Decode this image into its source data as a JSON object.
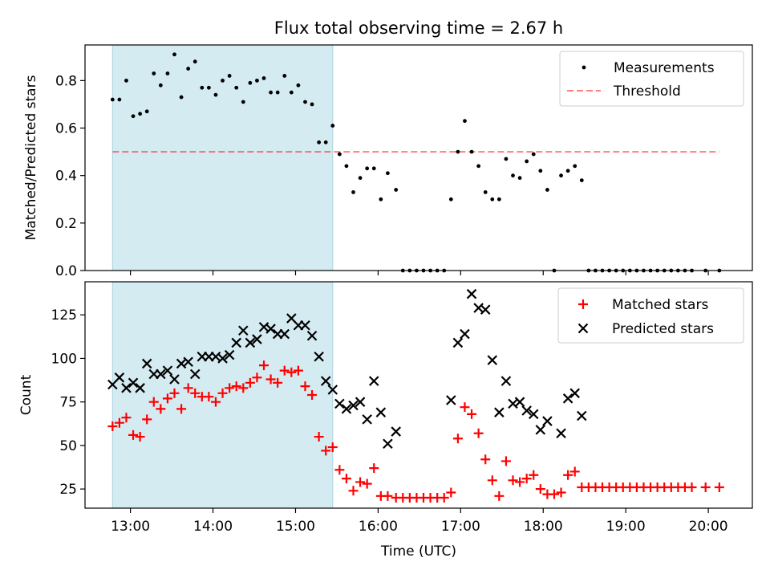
{
  "title": "Flux total observing time = 2.67 h",
  "colors": {
    "shade": "#add8e6",
    "threshold": "#ff0000",
    "measurements": "#000000",
    "matched": "#ff0000",
    "predicted": "#000000"
  },
  "chart_data": [
    {
      "type": "scatter",
      "panel": "top",
      "xlabel": "",
      "ylabel": "Matched/Predicted stars",
      "ylim": [
        0,
        0.95
      ],
      "yticks": [
        0.0,
        0.2,
        0.4,
        0.6,
        0.8
      ],
      "ytick_labels": [
        "0.0",
        "0.2",
        "0.4",
        "0.6",
        "0.8"
      ],
      "legend": {
        "position": "top-right",
        "entries": [
          "Measurements",
          "Threshold"
        ]
      },
      "shaded_interval": {
        "x0": "12:47",
        "x1": "15:27"
      },
      "threshold": {
        "name": "Threshold",
        "value": 0.5,
        "x0": "12:47",
        "x1": "20:08",
        "style": "dashed"
      },
      "series": [
        {
          "name": "Measurements",
          "marker": "dot",
          "points": [
            [
              "12:47",
              0.72
            ],
            [
              "12:52",
              0.72
            ],
            [
              "12:57",
              0.8
            ],
            [
              "13:02",
              0.65
            ],
            [
              "13:07",
              0.66
            ],
            [
              "13:12",
              0.67
            ],
            [
              "13:17",
              0.83
            ],
            [
              "13:22",
              0.78
            ],
            [
              "13:27",
              0.83
            ],
            [
              "13:32",
              0.91
            ],
            [
              "13:37",
              0.73
            ],
            [
              "13:42",
              0.85
            ],
            [
              "13:47",
              0.88
            ],
            [
              "13:52",
              0.77
            ],
            [
              "13:57",
              0.77
            ],
            [
              "14:02",
              0.74
            ],
            [
              "14:07",
              0.8
            ],
            [
              "14:12",
              0.82
            ],
            [
              "14:17",
              0.77
            ],
            [
              "14:22",
              0.71
            ],
            [
              "14:27",
              0.79
            ],
            [
              "14:32",
              0.8
            ],
            [
              "14:37",
              0.81
            ],
            [
              "14:42",
              0.75
            ],
            [
              "14:47",
              0.75
            ],
            [
              "14:52",
              0.82
            ],
            [
              "14:57",
              0.75
            ],
            [
              "15:02",
              0.78
            ],
            [
              "15:07",
              0.71
            ],
            [
              "15:12",
              0.7
            ],
            [
              "15:17",
              0.54
            ],
            [
              "15:22",
              0.54
            ],
            [
              "15:27",
              0.61
            ],
            [
              "15:32",
              0.49
            ],
            [
              "15:37",
              0.44
            ],
            [
              "15:42",
              0.33
            ],
            [
              "15:47",
              0.39
            ],
            [
              "15:52",
              0.43
            ],
            [
              "15:57",
              0.43
            ],
            [
              "16:02",
              0.3
            ],
            [
              "16:07",
              0.41
            ],
            [
              "16:13",
              0.34
            ],
            [
              "16:18",
              0.0
            ],
            [
              "16:23",
              0.0
            ],
            [
              "16:28",
              0.0
            ],
            [
              "16:33",
              0.0
            ],
            [
              "16:38",
              0.0
            ],
            [
              "16:43",
              0.0
            ],
            [
              "16:48",
              0.0
            ],
            [
              "16:53",
              0.3
            ],
            [
              "16:58",
              0.5
            ],
            [
              "17:03",
              0.63
            ],
            [
              "17:08",
              0.5
            ],
            [
              "17:13",
              0.44
            ],
            [
              "17:18",
              0.33
            ],
            [
              "17:23",
              0.3
            ],
            [
              "17:28",
              0.3
            ],
            [
              "17:33",
              0.47
            ],
            [
              "17:38",
              0.4
            ],
            [
              "17:43",
              0.39
            ],
            [
              "17:48",
              0.46
            ],
            [
              "17:53",
              0.49
            ],
            [
              "17:58",
              0.42
            ],
            [
              "18:03",
              0.34
            ],
            [
              "18:08",
              0.0
            ],
            [
              "18:13",
              0.4
            ],
            [
              "18:18",
              0.42
            ],
            [
              "18:23",
              0.44
            ],
            [
              "18:28",
              0.38
            ],
            [
              "18:33",
              0.0
            ],
            [
              "18:38",
              0.0
            ],
            [
              "18:43",
              0.0
            ],
            [
              "18:48",
              0.0
            ],
            [
              "18:53",
              0.0
            ],
            [
              "18:58",
              0.0
            ],
            [
              "19:03",
              0.0
            ],
            [
              "19:08",
              0.0
            ],
            [
              "19:13",
              0.0
            ],
            [
              "19:18",
              0.0
            ],
            [
              "19:23",
              0.0
            ],
            [
              "19:28",
              0.0
            ],
            [
              "19:33",
              0.0
            ],
            [
              "19:38",
              0.0
            ],
            [
              "19:43",
              0.0
            ],
            [
              "19:48",
              0.0
            ],
            [
              "19:58",
              0.0
            ],
            [
              "20:08",
              0.0
            ]
          ]
        }
      ]
    },
    {
      "type": "scatter",
      "panel": "bottom",
      "xlabel": "Time (UTC)",
      "ylabel": "Count",
      "xlim": [
        "12:27",
        "20:32"
      ],
      "ylim": [
        14,
        144
      ],
      "yticks": [
        25,
        50,
        75,
        100,
        125
      ],
      "ytick_labels": [
        "25",
        "50",
        "75",
        "100",
        "125"
      ],
      "xticks": [
        "13:00",
        "14:00",
        "15:00",
        "16:00",
        "17:00",
        "18:00",
        "19:00",
        "20:00"
      ],
      "legend": {
        "position": "top-right",
        "entries": [
          "Matched stars",
          "Predicted stars"
        ]
      },
      "shaded_interval": {
        "x0": "12:47",
        "x1": "15:27"
      },
      "series": [
        {
          "name": "Matched stars",
          "marker": "plus",
          "points": [
            [
              "12:47",
              61
            ],
            [
              "12:52",
              63
            ],
            [
              "12:57",
              66
            ],
            [
              "13:02",
              56
            ],
            [
              "13:07",
              55
            ],
            [
              "13:12",
              65
            ],
            [
              "13:17",
              75
            ],
            [
              "13:22",
              71
            ],
            [
              "13:27",
              77
            ],
            [
              "13:32",
              80
            ],
            [
              "13:37",
              71
            ],
            [
              "13:42",
              83
            ],
            [
              "13:47",
              80
            ],
            [
              "13:52",
              78
            ],
            [
              "13:57",
              78
            ],
            [
              "14:02",
              75
            ],
            [
              "14:07",
              80
            ],
            [
              "14:12",
              83
            ],
            [
              "14:17",
              84
            ],
            [
              "14:22",
              83
            ],
            [
              "14:27",
              86
            ],
            [
              "14:32",
              89
            ],
            [
              "14:37",
              96
            ],
            [
              "14:42",
              88
            ],
            [
              "14:47",
              86
            ],
            [
              "14:52",
              93
            ],
            [
              "14:57",
              92
            ],
            [
              "15:02",
              93
            ],
            [
              "15:07",
              84
            ],
            [
              "15:12",
              79
            ],
            [
              "15:17",
              55
            ],
            [
              "15:22",
              47
            ],
            [
              "15:27",
              49
            ],
            [
              "15:32",
              36
            ],
            [
              "15:37",
              31
            ],
            [
              "15:42",
              24
            ],
            [
              "15:47",
              29
            ],
            [
              "15:52",
              28
            ],
            [
              "15:57",
              37
            ],
            [
              "16:02",
              21
            ],
            [
              "16:07",
              21
            ],
            [
              "16:13",
              20
            ],
            [
              "16:18",
              20
            ],
            [
              "16:23",
              20
            ],
            [
              "16:28",
              20
            ],
            [
              "16:33",
              20
            ],
            [
              "16:38",
              20
            ],
            [
              "16:43",
              20
            ],
            [
              "16:48",
              20
            ],
            [
              "16:53",
              23
            ],
            [
              "16:58",
              54
            ],
            [
              "17:03",
              72
            ],
            [
              "17:08",
              68
            ],
            [
              "17:13",
              57
            ],
            [
              "17:18",
              42
            ],
            [
              "17:23",
              30
            ],
            [
              "17:28",
              21
            ],
            [
              "17:33",
              41
            ],
            [
              "17:38",
              30
            ],
            [
              "17:43",
              29
            ],
            [
              "17:48",
              31
            ],
            [
              "17:53",
              33
            ],
            [
              "17:58",
              25
            ],
            [
              "18:03",
              22
            ],
            [
              "18:08",
              22
            ],
            [
              "18:13",
              23
            ],
            [
              "18:18",
              33
            ],
            [
              "18:23",
              35
            ],
            [
              "18:28",
              26
            ],
            [
              "18:33",
              26
            ],
            [
              "18:38",
              26
            ],
            [
              "18:43",
              26
            ],
            [
              "18:48",
              26
            ],
            [
              "18:53",
              26
            ],
            [
              "18:58",
              26
            ],
            [
              "19:03",
              26
            ],
            [
              "19:08",
              26
            ],
            [
              "19:13",
              26
            ],
            [
              "19:18",
              26
            ],
            [
              "19:23",
              26
            ],
            [
              "19:28",
              26
            ],
            [
              "19:33",
              26
            ],
            [
              "19:38",
              26
            ],
            [
              "19:43",
              26
            ],
            [
              "19:48",
              26
            ],
            [
              "19:58",
              26
            ],
            [
              "20:08",
              26
            ]
          ]
        },
        {
          "name": "Predicted stars",
          "marker": "x",
          "points": [
            [
              "12:47",
              85
            ],
            [
              "12:52",
              89
            ],
            [
              "12:57",
              83
            ],
            [
              "13:02",
              86
            ],
            [
              "13:07",
              83
            ],
            [
              "13:12",
              97
            ],
            [
              "13:17",
              91
            ],
            [
              "13:22",
              91
            ],
            [
              "13:27",
              93
            ],
            [
              "13:32",
              88
            ],
            [
              "13:37",
              97
            ],
            [
              "13:42",
              98
            ],
            [
              "13:47",
              91
            ],
            [
              "13:52",
              101
            ],
            [
              "13:57",
              101
            ],
            [
              "14:02",
              101
            ],
            [
              "14:07",
              100
            ],
            [
              "14:12",
              102
            ],
            [
              "14:17",
              109
            ],
            [
              "14:22",
              116
            ],
            [
              "14:27",
              109
            ],
            [
              "14:32",
              111
            ],
            [
              "14:37",
              118
            ],
            [
              "14:42",
              117
            ],
            [
              "14:47",
              114
            ],
            [
              "14:52",
              114
            ],
            [
              "14:57",
              123
            ],
            [
              "15:02",
              119
            ],
            [
              "15:07",
              119
            ],
            [
              "15:12",
              113
            ],
            [
              "15:17",
              101
            ],
            [
              "15:22",
              87
            ],
            [
              "15:27",
              82
            ],
            [
              "15:32",
              74
            ],
            [
              "15:37",
              71
            ],
            [
              "15:42",
              73
            ],
            [
              "15:47",
              75
            ],
            [
              "15:52",
              65
            ],
            [
              "15:57",
              87
            ],
            [
              "16:02",
              69
            ],
            [
              "16:07",
              51
            ],
            [
              "16:13",
              58
            ],
            [
              "16:53",
              76
            ],
            [
              "16:58",
              109
            ],
            [
              "17:03",
              114
            ],
            [
              "17:08",
              137
            ],
            [
              "17:13",
              129
            ],
            [
              "17:18",
              128
            ],
            [
              "17:23",
              99
            ],
            [
              "17:28",
              69
            ],
            [
              "17:33",
              87
            ],
            [
              "17:38",
              74
            ],
            [
              "17:43",
              75
            ],
            [
              "17:48",
              70
            ],
            [
              "17:53",
              68
            ],
            [
              "17:58",
              59
            ],
            [
              "18:03",
              64
            ],
            [
              "18:13",
              57
            ],
            [
              "18:18",
              77
            ],
            [
              "18:23",
              80
            ],
            [
              "18:28",
              67
            ]
          ]
        }
      ]
    }
  ]
}
